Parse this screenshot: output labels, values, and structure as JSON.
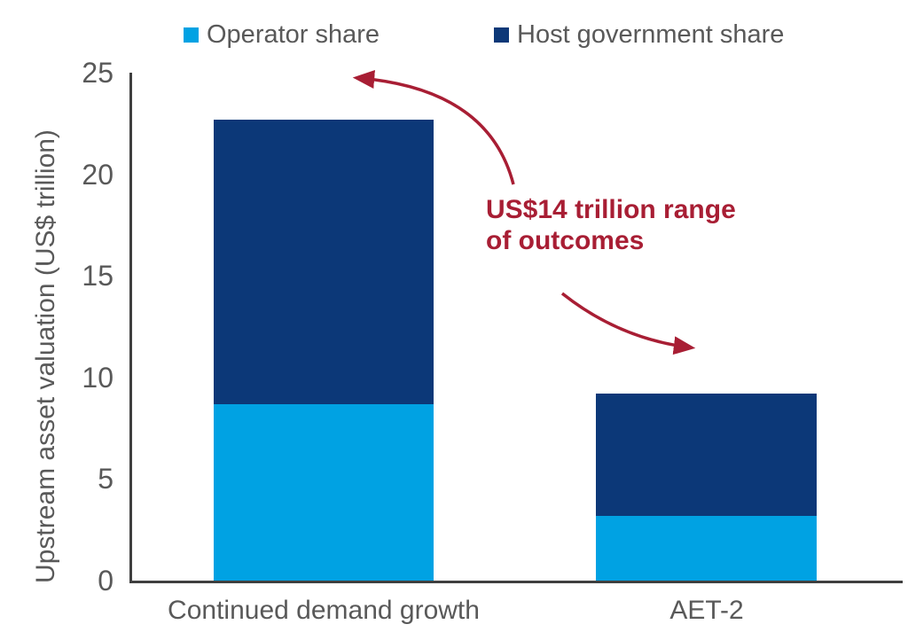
{
  "colors": {
    "operator": "#00A2E3",
    "host_government": "#0C3878",
    "annotation_red": "#A81E34",
    "axis_text_gray": "#595959",
    "axis_line_gray": "#3F3F3F"
  },
  "legend": {
    "items": [
      {
        "label": "Operator share",
        "color": "#00A2E3"
      },
      {
        "label": "Host government share",
        "color": "#0C3878"
      }
    ]
  },
  "y_axis": {
    "title": "Upstream asset valuation (US$ trillion)",
    "ticks": [
      "25",
      "20",
      "15",
      "10",
      "5",
      "0"
    ]
  },
  "annotation": {
    "line1": "US$14 trillion range",
    "line2": "of outcomes"
  },
  "chart_data": {
    "type": "bar",
    "stacked": true,
    "title": "",
    "xlabel": "",
    "ylabel": "Upstream asset valuation (US$ trillion)",
    "ylim": [
      0,
      25
    ],
    "yticks": [
      0,
      5,
      10,
      15,
      20,
      25
    ],
    "grid": false,
    "legend_position": "top",
    "categories": [
      "Continued demand growth",
      "AET-2"
    ],
    "series": [
      {
        "name": "Operator share",
        "color": "#00A2E3",
        "values": [
          8.7,
          3.2
        ]
      },
      {
        "name": "Host government share",
        "color": "#0C3878",
        "values": [
          14.0,
          6.0
        ]
      }
    ],
    "totals": [
      22.7,
      9.2
    ],
    "annotation": "US$14 trillion range of outcomes"
  }
}
